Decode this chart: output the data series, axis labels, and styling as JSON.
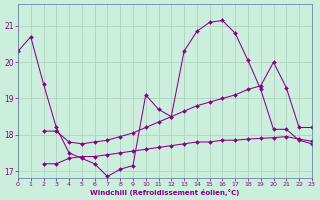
{
  "xlabel": "Windchill (Refroidissement éolien,°C)",
  "background_color": "#cceedd",
  "grid_color": "#aaccbb",
  "line_color": "#880088",
  "xlim": [
    0,
    23
  ],
  "ylim": [
    16.8,
    21.6
  ],
  "yticks": [
    17,
    18,
    19,
    20,
    21
  ],
  "xticks": [
    0,
    1,
    2,
    3,
    4,
    5,
    6,
    7,
    8,
    9,
    10,
    11,
    12,
    13,
    14,
    15,
    16,
    17,
    18,
    19,
    20,
    21,
    22,
    23
  ],
  "s1_x": [
    0,
    1,
    2,
    3,
    4,
    5,
    6,
    7,
    8,
    9,
    10,
    11,
    12,
    13,
    14,
    15,
    16,
    17,
    18,
    19,
    20,
    21,
    22,
    23
  ],
  "s1_y": [
    20.3,
    20.7,
    19.4,
    18.2,
    17.5,
    17.35,
    17.2,
    16.85,
    17.05,
    17.15,
    19.1,
    18.7,
    18.5,
    20.3,
    20.85,
    21.1,
    21.15,
    20.8,
    20.05,
    19.25,
    18.15,
    18.15,
    17.85,
    17.75
  ],
  "s2_x": [
    2,
    3,
    4,
    5,
    6,
    7,
    8,
    9,
    10,
    11,
    12,
    13,
    14,
    15,
    16,
    17,
    18,
    19,
    20,
    21,
    22,
    23
  ],
  "s2_y": [
    18.1,
    18.1,
    17.8,
    17.75,
    17.8,
    17.85,
    17.95,
    18.05,
    18.2,
    18.35,
    18.5,
    18.65,
    18.8,
    18.9,
    19.0,
    19.1,
    19.25,
    19.35,
    20.0,
    19.3,
    18.2,
    18.2
  ],
  "s3_x": [
    2,
    3,
    4,
    5,
    6,
    7,
    8,
    9,
    10,
    11,
    12,
    13,
    14,
    15,
    16,
    17,
    18,
    19,
    20,
    21,
    22,
    23
  ],
  "s3_y": [
    17.2,
    17.2,
    17.35,
    17.4,
    17.4,
    17.45,
    17.5,
    17.55,
    17.6,
    17.65,
    17.7,
    17.75,
    17.8,
    17.8,
    17.85,
    17.85,
    17.88,
    17.9,
    17.92,
    17.95,
    17.88,
    17.82
  ]
}
